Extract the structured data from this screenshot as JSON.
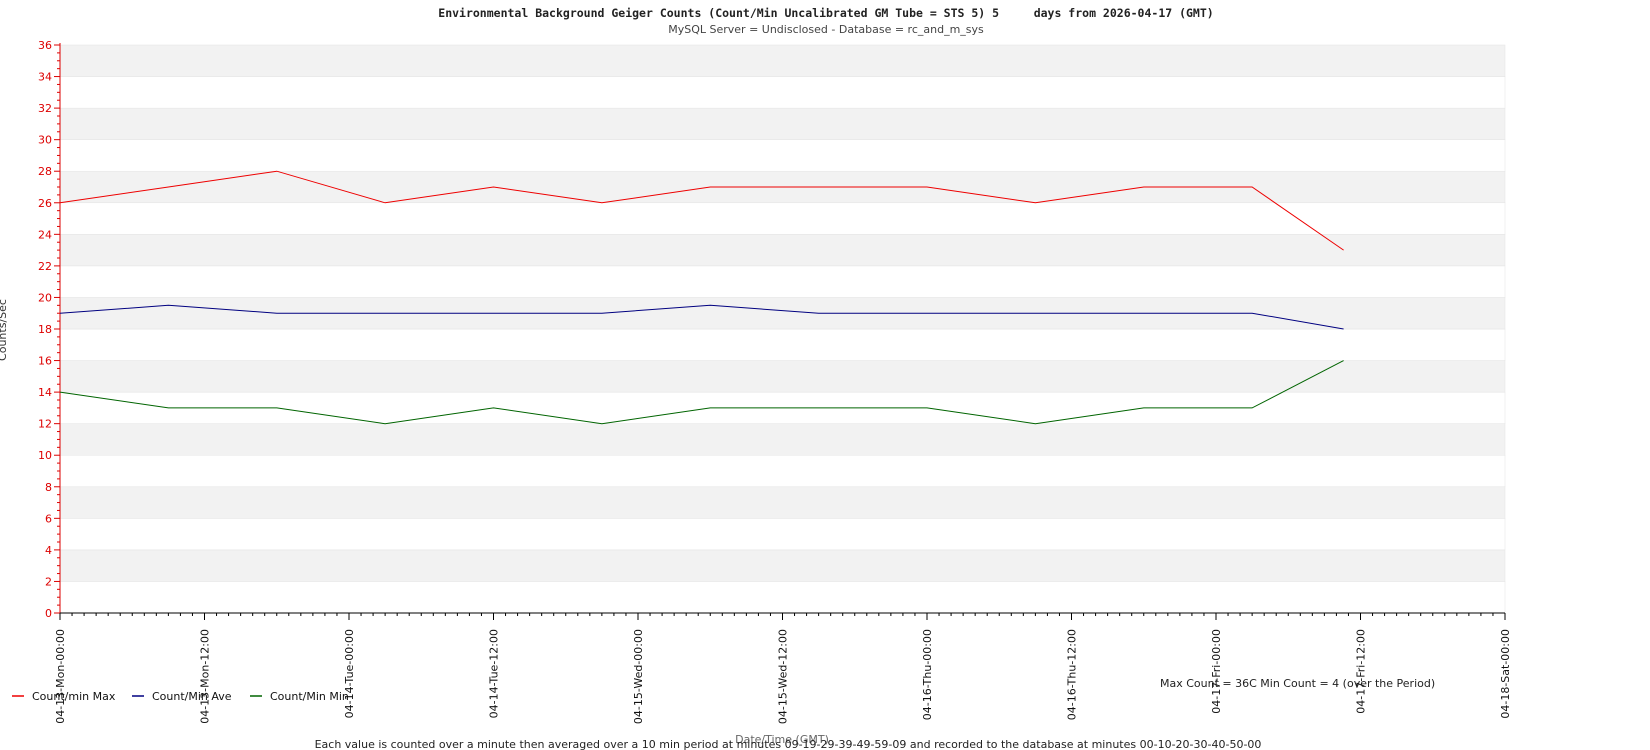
{
  "title": "Environmental Background Geiger Counts (Count/Min Uncalibrated GM Tube = STS 5) 5     days from 2026-04-17 (GMT)",
  "subtitle": "MySQL Server = Undisclosed - Database = rc_and_m_sys",
  "stats_text": "Max Count = 36C Min Count = 4 (over the Period)",
  "footnote": "Each value is counted over a minute then averaged over a 10 min period at minutes 09-19-29-39-49-59-09 and recorded to the database at minutes 00-10-20-30-40-50-00",
  "colors": {
    "max": "#ee0000",
    "ave": "#000080",
    "min": "#006400",
    "axis": "#dd0000",
    "band": "#f2f2f2"
  },
  "chart_data": {
    "type": "line",
    "title": "Environmental Background Geiger Counts (Count/Min Uncalibrated GM Tube = STS 5) 5     days from 2026-04-17 (GMT)",
    "subtitle": "MySQL Server = Undisclosed - Database = rc_and_m_sys",
    "xlabel": "Date/Time (GMT)",
    "ylabel": "Counts/Sec",
    "ylim": [
      0,
      36
    ],
    "yticks": [
      0,
      2,
      4,
      6,
      8,
      10,
      12,
      14,
      16,
      18,
      20,
      22,
      24,
      26,
      28,
      30,
      32,
      34,
      36
    ],
    "xlim_hours": [
      0,
      120
    ],
    "x_unit": "hours from 04-13-Mon-00:00",
    "xtick_labels": [
      "04-13-Mon-00:00",
      "04-13-Mon-12:00",
      "04-14-Tue-00:00",
      "04-14-Tue-12:00",
      "04-15-Wed-00:00",
      "04-15-Wed-12:00",
      "04-16-Thu-00:00",
      "04-16-Thu-12:00",
      "04-17-Fri-00:00",
      "04-17-Fri-12:00",
      "04-18-Sat-00:00"
    ],
    "xtick_hours": [
      0,
      12,
      24,
      36,
      48,
      60,
      72,
      84,
      96,
      108,
      120
    ],
    "legend_position": "bottom-left",
    "grid": "alternating horizontal bands",
    "series": [
      {
        "name": "Count/min Max",
        "key": "max",
        "x_hours": [
          0,
          9,
          18,
          27,
          36,
          45,
          54,
          63,
          72,
          81,
          90,
          99,
          106.6
        ],
        "values": [
          26,
          27,
          28,
          26,
          27,
          26,
          27,
          27,
          27,
          26,
          27,
          27,
          23
        ]
      },
      {
        "name": "Count/Min Ave",
        "key": "ave",
        "x_hours": [
          0,
          9,
          18,
          27,
          36,
          45,
          54,
          63,
          72,
          81,
          90,
          99,
          106.6
        ],
        "values": [
          19,
          19.5,
          19,
          19,
          19,
          19,
          19.5,
          19,
          19,
          19,
          19,
          19,
          18
        ]
      },
      {
        "name": "Count/Min Min",
        "key": "min",
        "x_hours": [
          0,
          9,
          18,
          27,
          36,
          45,
          54,
          63,
          72,
          81,
          90,
          99,
          106.6
        ],
        "values": [
          14,
          13,
          13,
          12,
          13,
          12,
          13,
          13,
          13,
          12,
          13,
          13,
          16
        ]
      }
    ]
  }
}
